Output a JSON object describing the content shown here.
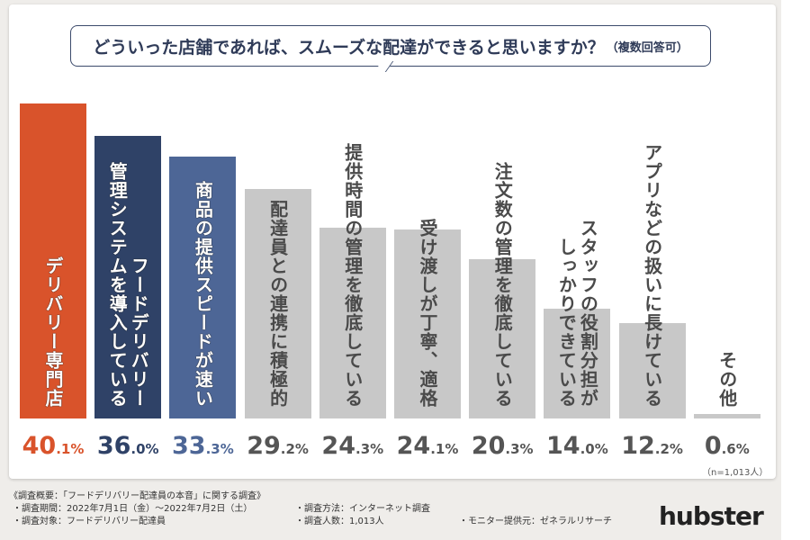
{
  "chart_data": {
    "type": "bar",
    "title": "どういった店舗であれば、スムーズな配達ができると思いますか？",
    "subtitle": "（複数回答可）",
    "categories": [
      [
        "デリバリー専門店"
      ],
      [
        "フードデリバリー",
        "管理システムを導入している"
      ],
      [
        "商品の提供スピードが速い"
      ],
      [
        "配達員との連携に積極的"
      ],
      [
        "提供時間の管理を徹底している"
      ],
      [
        "受け渡しが丁寧、適格"
      ],
      [
        "注文数の管理を徹底している"
      ],
      [
        "スタッフの役割分担が",
        "しっかりできている"
      ],
      [
        "アプリなどの扱いに長けている"
      ],
      [
        "その他"
      ]
    ],
    "values": [
      40.1,
      36.0,
      33.3,
      29.2,
      24.3,
      24.1,
      20.3,
      14.0,
      12.2,
      0.6
    ],
    "value_labels": [
      [
        "40",
        ".1%"
      ],
      [
        "36",
        ".0%"
      ],
      [
        "33",
        ".3%"
      ],
      [
        "29",
        ".2%"
      ],
      [
        "24",
        ".3%"
      ],
      [
        "24",
        ".1%"
      ],
      [
        "20",
        ".3%"
      ],
      [
        "14",
        ".0%"
      ],
      [
        "12",
        ".2%"
      ],
      [
        "0",
        ".6%"
      ]
    ],
    "colors": [
      "#d9532b",
      "#2f4267",
      "#4d6696",
      "#c8c8c8",
      "#c8c8c8",
      "#c8c8c8",
      "#c8c8c8",
      "#c8c8c8",
      "#c8c8c8",
      "#c8c8c8"
    ],
    "value_colors": [
      "#d9532b",
      "#2f4267",
      "#4d6696",
      "#555555",
      "#555555",
      "#555555",
      "#555555",
      "#555555",
      "#555555",
      "#555555"
    ],
    "ylim": [
      0,
      40.1
    ],
    "grid": false,
    "note": "（n=1,013人）"
  },
  "footer": {
    "heading": "《調査概要：「フードデリバリー配達員の本音」に関する調査》",
    "period": "・調査期間：2022年7月1日（金）〜2022年7月2日（土）",
    "target": "・調査対象：フードデリバリー配達員",
    "method": "・調査方法：インターネット調査",
    "count": "・調査人数：1,013人",
    "provider": "・モニター提供元：ゼネラルリサーチ"
  },
  "logo": "hubster"
}
